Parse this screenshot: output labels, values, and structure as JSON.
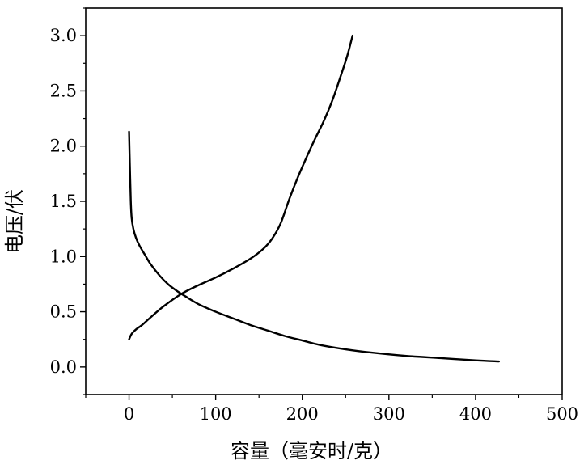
{
  "chart_data": {
    "type": "line",
    "title": "",
    "xlabel": "容量（毫安时/克）",
    "ylabel": "电压/伏",
    "xlim": [
      -50,
      500
    ],
    "ylim": [
      -0.25,
      3.25
    ],
    "x_ticks": [
      "0",
      "100",
      "200",
      "300",
      "400",
      "500"
    ],
    "y_ticks": [
      "0.0",
      "0.5",
      "1.0",
      "1.5",
      "2.0",
      "2.5",
      "3.0"
    ],
    "grid": false,
    "legend": "none",
    "line_color": "#000000",
    "series": [
      {
        "values_x": [
          0,
          1,
          2,
          3,
          5,
          8,
          12,
          18,
          25,
          35,
          45,
          55,
          65,
          80,
          100,
          120,
          140,
          160,
          180,
          200,
          220,
          250,
          280,
          320,
          360,
          400,
          427
        ],
        "values_y": [
          2.13,
          1.8,
          1.5,
          1.35,
          1.25,
          1.17,
          1.1,
          1.02,
          0.93,
          0.83,
          0.75,
          0.69,
          0.64,
          0.57,
          0.5,
          0.44,
          0.38,
          0.33,
          0.28,
          0.24,
          0.2,
          0.16,
          0.13,
          0.1,
          0.08,
          0.06,
          0.05
        ]
      },
      {
        "values_x": [
          0,
          3,
          8,
          15,
          25,
          40,
          60,
          80,
          100,
          120,
          140,
          155,
          165,
          175,
          185,
          195,
          205,
          215,
          225,
          235,
          245,
          252,
          258
        ],
        "values_y": [
          0.25,
          0.3,
          0.34,
          0.38,
          0.45,
          0.55,
          0.66,
          0.74,
          0.81,
          0.89,
          0.98,
          1.07,
          1.16,
          1.3,
          1.52,
          1.72,
          1.9,
          2.07,
          2.23,
          2.42,
          2.65,
          2.82,
          3.0
        ]
      }
    ]
  }
}
